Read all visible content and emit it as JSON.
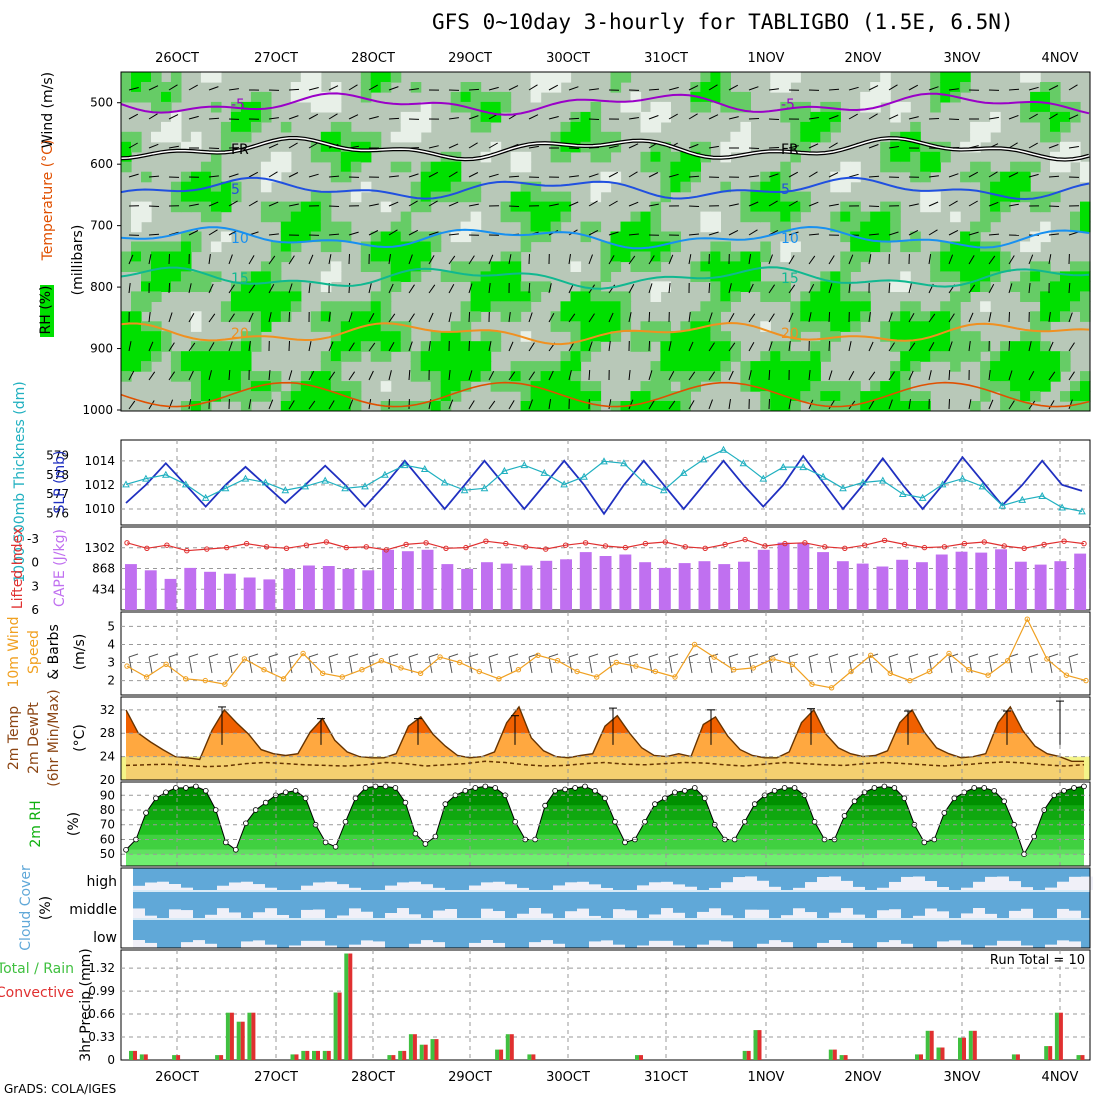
{
  "title": "GFS 0~10day 3-hourly for TABLIGBO (1.5E, 6.5N)",
  "credit": "GrADS: COLA/IGES",
  "dates": [
    "26OCT",
    "27OCT",
    "28OCT",
    "29OCT",
    "30OCT",
    "31OCT",
    "1NOV",
    "2NOV",
    "3NOV",
    "4NOV"
  ],
  "colors": {
    "rh_dark": "#00e000",
    "rh_mid": "#66cc66",
    "rh_light": "#b8c8b8",
    "rh_pale": "#e8f0e8",
    "purple": "#9a00c8",
    "blue": "#2050e0",
    "lightblue": "#1890f0",
    "teal": "#10b890",
    "orange": "#f09020",
    "red_orange": "#e05000",
    "cape": "#c070f0",
    "lifted": "#e03030",
    "slp": "#2030c0",
    "thick": "#20b0c0",
    "wind10": "#f0a020",
    "temp_dark": "#f06000",
    "temp_light": "#ffa840",
    "dewpt_bg": "#f4f488",
    "rh2m": "#10b010",
    "cloud": "#60a8d8",
    "cloud_clear": "#f0f0f8",
    "precip_total": "#40c040",
    "precip_conv": "#e03030"
  },
  "chart_data": [
    {
      "panel": "upper-air",
      "type": "heatmap",
      "ylabel_rh": "RH (%)",
      "ylabel_temp": "Temperature (°C)",
      "ylabel_wind": "Wind (m/s)",
      "ylabel_p": "(millibars)",
      "yticks": [
        500,
        600,
        700,
        800,
        900,
        1000
      ],
      "ylim": [
        1000,
        450
      ],
      "contours": [
        {
          "level": "-5",
          "label": "-5",
          "color": "purple",
          "p": 502
        },
        {
          "level": "FR",
          "label": "FR",
          "color": "black",
          "p": 575
        },
        {
          "level": "5",
          "label": "5",
          "color": "blue",
          "p": 640
        },
        {
          "level": "10",
          "label": "10",
          "color": "lightblue",
          "p": 720
        },
        {
          "level": "15",
          "label": "15",
          "color": "teal",
          "p": 785
        },
        {
          "level": "20",
          "label": "20",
          "color": "orange",
          "p": 875
        }
      ]
    },
    {
      "panel": "slp-thickness",
      "type": "line",
      "ylabel_left": "1000-500mb Thickness (dm)",
      "ylabel_right": "SLP (mb)",
      "yticks_left": [
        576,
        577,
        578,
        579
      ],
      "yticks_right": [
        1010,
        1012,
        1014
      ],
      "series": [
        {
          "name": "SLP (mb)",
          "values": [
            1010.5,
            1012,
            1013.8,
            1012,
            1010.2,
            1012,
            1013.5,
            1012,
            1010.5,
            1012,
            1013.6,
            1012,
            1010.2,
            1012,
            1014,
            1012,
            1010,
            1012,
            1014,
            1012,
            1010,
            1012,
            1014,
            1012,
            1009.6,
            1012,
            1014,
            1012,
            1010,
            1012,
            1014,
            1012,
            1010.2,
            1012,
            1014.4,
            1012.2,
            1010,
            1012,
            1014.2,
            1012,
            1010,
            1012,
            1014.3,
            1012.3,
            1010.3,
            1012,
            1014,
            1012,
            1011.5
          ]
        },
        {
          "name": "Thickness (dm)",
          "values": [
            577.5,
            577.8,
            578,
            577.5,
            576.8,
            577.3,
            577.8,
            577.6,
            577.2,
            577.4,
            577.7,
            577.3,
            577.4,
            578,
            578.5,
            578.3,
            577.6,
            577.2,
            577.3,
            578.2,
            578.5,
            578.1,
            577.5,
            577.9,
            578.7,
            578.6,
            577.6,
            577.2,
            578.1,
            578.8,
            579.3,
            578.6,
            577.8,
            578.4,
            578.4,
            577.9,
            577.3,
            577.6,
            577.7,
            577,
            576.8,
            577.5,
            577.8,
            577.4,
            576.4,
            576.7,
            576.9,
            576.3,
            576.1
          ]
        }
      ]
    },
    {
      "panel": "cape-li",
      "type": "bar",
      "ylabel_left": "Lifted Index",
      "ylabel_right": "CAPE (J/kg)",
      "yticks_left": [
        -3,
        0,
        3,
        6
      ],
      "yticks_right": [
        434,
        868,
        1302
      ],
      "cape": [
        960,
        830,
        650,
        880,
        800,
        760,
        680,
        640,
        860,
        930,
        920,
        860,
        830,
        1260,
        1230,
        1260,
        960,
        860,
        1000,
        970,
        930,
        1030,
        1060,
        1210,
        1130,
        1160,
        1000,
        880,
        980,
        1020,
        960,
        1010,
        1260,
        1410,
        1390,
        1210,
        1020,
        970,
        910,
        1050,
        1000,
        1160,
        1220,
        1200,
        1270,
        1010,
        950,
        1020,
        1180
      ],
      "lifted": [
        -2.5,
        -1.8,
        -2.2,
        -1.5,
        -1.7,
        -1.9,
        -2.4,
        -2,
        -1.8,
        -2.2,
        -2.6,
        -1.9,
        -2,
        -1.6,
        -2.3,
        -2.5,
        -1.8,
        -1.9,
        -2.7,
        -2.4,
        -2,
        -1.7,
        -2.2,
        -2.5,
        -2.1,
        -1.9,
        -2.4,
        -2.6,
        -2,
        -1.8,
        -2.3,
        -2.9,
        -2.1,
        -2.4,
        -2.5,
        -2,
        -1.8,
        -2.2,
        -2.8,
        -2.3,
        -1.9,
        -2,
        -2.4,
        -2.6,
        -2.1,
        -1.8,
        -2.3,
        -2.7,
        -2.4
      ]
    },
    {
      "panel": "wind10m",
      "type": "line",
      "ylabel": "10m Wind Speed & Barbs (m/s)",
      "yticks": [
        2,
        3,
        4,
        5
      ],
      "values": [
        2.8,
        2.2,
        2.9,
        2.1,
        2,
        1.8,
        3.2,
        2.6,
        2.1,
        3.5,
        2.4,
        2.2,
        2.6,
        3.1,
        2.7,
        2.4,
        3.3,
        3,
        2.5,
        2.1,
        2.6,
        3.4,
        3.1,
        2.5,
        2.2,
        3,
        2.8,
        2.5,
        2.2,
        4,
        3.3,
        2.6,
        2.7,
        3.2,
        2.9,
        1.8,
        1.6,
        2.5,
        3.4,
        2.4,
        2,
        2.5,
        3.5,
        2.6,
        2.3,
        3.1,
        5.4,
        3.2,
        2.3,
        2
      ]
    },
    {
      "panel": "temp2m",
      "type": "area",
      "ylabel": "2m Temp 2m DewPt (6hr Min/Max) (°C)",
      "yticks": [
        20,
        24,
        28,
        32
      ],
      "temp": [
        32,
        28,
        26.5,
        25.2,
        24,
        23.8,
        23.5,
        28.5,
        32,
        29.8,
        27.8,
        25.2,
        24.5,
        24.2,
        24.5,
        28.2,
        30.5,
        26.8,
        24.8,
        24,
        23.8,
        23.8,
        24.5,
        29.2,
        30.8,
        27.8,
        25.8,
        24.2,
        23.8,
        24,
        24.8,
        29.8,
        32.5,
        27.2,
        25,
        24,
        23.8,
        24.2,
        24.5,
        29.2,
        31,
        28,
        25.5,
        24.2,
        24,
        24.5,
        24,
        29.5,
        30.8,
        27.5,
        25.2,
        24.2,
        23.8,
        23.8,
        24.8,
        29.8,
        32,
        27.8,
        25.5,
        24.5,
        24,
        24.2,
        25,
        29.8,
        32,
        28.2,
        25.5,
        24.5,
        23.8,
        24,
        24.5,
        29.8,
        32.5,
        28.5,
        25.8,
        24.5,
        24,
        23.2,
        23.2
      ],
      "dewpt": [
        22.5,
        22.6,
        22.7,
        22.5,
        22.3,
        22.4,
        22.8,
        23,
        22.8,
        22.6,
        22.5,
        22.4,
        22.6,
        23,
        22.8,
        22.4,
        22.6,
        22.8,
        23.2,
        23,
        22.6,
        22.4,
        22.5,
        22.8,
        23,
        22.7,
        22.6,
        22.8,
        23,
        22.9,
        22.6,
        22.4,
        22.7,
        23,
        22.8,
        22.6,
        22.5,
        22.8,
        23,
        22.8,
        22.6,
        22.4,
        22.6,
        22.9,
        23.1,
        22.9,
        22.6,
        22.4,
        22.6
      ],
      "max": [
        32.5,
        30.5,
        30.5,
        31,
        32.3,
        32,
        32.2,
        31.8,
        31.8,
        33.5
      ]
    },
    {
      "panel": "rh2m",
      "type": "area",
      "ylabel": "2m RH (%)",
      "yticks": [
        50,
        60,
        70,
        80,
        90
      ],
      "values": [
        53,
        60,
        78,
        88,
        92,
        95,
        95,
        96,
        93,
        80,
        58,
        53,
        71,
        80,
        85,
        90,
        92,
        93,
        88,
        70,
        58,
        55,
        72,
        88,
        95,
        96,
        96,
        95,
        85,
        64,
        57,
        62,
        84,
        90,
        93,
        95,
        96,
        95,
        90,
        72,
        60,
        60,
        83,
        93,
        94,
        95,
        96,
        93,
        88,
        72,
        58,
        60,
        72,
        84,
        88,
        92,
        93,
        95,
        88,
        70,
        60,
        60,
        72,
        84,
        90,
        93,
        95,
        95,
        90,
        72,
        60,
        60,
        76,
        86,
        92,
        95,
        96,
        95,
        88,
        70,
        58,
        60,
        78,
        88,
        92,
        95,
        95,
        93,
        86,
        70,
        50,
        62,
        80,
        90,
        93,
        95,
        96
      ]
    },
    {
      "panel": "cloud",
      "type": "heatmap",
      "ylabel": "Cloud Cover (%)",
      "rows": [
        "high",
        "middle",
        "low"
      ]
    },
    {
      "panel": "precip",
      "type": "bar",
      "ylabel_total": "Total / Rain",
      "ylabel_conv": "Convective",
      "ylabel": "3hr Precip (mm)",
      "yticks": [
        0,
        0.33,
        0.66,
        0.99,
        1.32
      ],
      "run_total_label": "Run Total = 10",
      "values": [
        0.13,
        0.08,
        0,
        0,
        0.07,
        0,
        0,
        0,
        0.07,
        0.68,
        0.55,
        0.68,
        0,
        0,
        0,
        0.08,
        0.13,
        0.13,
        0.13,
        0.97,
        1.53,
        0,
        0,
        0,
        0.07,
        0.13,
        0.37,
        0.22,
        0.3,
        0,
        0,
        0,
        0,
        0,
        0.15,
        0.37,
        0,
        0.08,
        0,
        0,
        0,
        0,
        0,
        0,
        0,
        0,
        0,
        0.07,
        0,
        0,
        0,
        0,
        0,
        0,
        0,
        0,
        0,
        0.13,
        0.43,
        0,
        0,
        0,
        0,
        0,
        0,
        0.15,
        0.07,
        0,
        0,
        0,
        0,
        0,
        0,
        0.08,
        0.42,
        0.18,
        0,
        0.32,
        0.42,
        0,
        0,
        0,
        0.08,
        0,
        0,
        0.2,
        0.68,
        0,
        0.07,
        0
      ]
    }
  ]
}
